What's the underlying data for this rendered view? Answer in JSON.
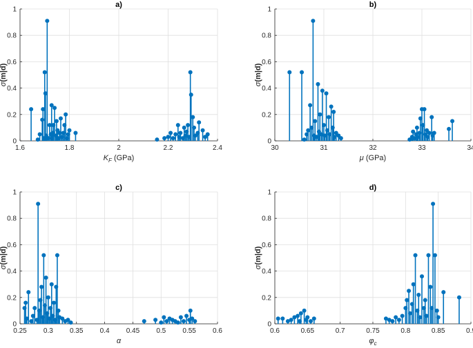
{
  "chart_data": [
    {
      "type": "stem",
      "title": "a)",
      "xlabel": "K_F (GPa)",
      "ylabel": "σ(m|d)",
      "xlim": [
        1.6,
        2.4
      ],
      "ylim": [
        0,
        1
      ],
      "xticks": [
        "1.6",
        "1.8",
        "2",
        "2.2",
        "2.4"
      ],
      "yticks": [
        "0",
        "0.2",
        "0.4",
        "0.6",
        "0.8",
        "1"
      ],
      "grid": true,
      "points": [
        [
          1.645,
          0.24
        ],
        [
          1.672,
          0.01
        ],
        [
          1.68,
          0.05
        ],
        [
          1.69,
          0.16
        ],
        [
          1.693,
          0.24
        ],
        [
          1.697,
          0.02
        ],
        [
          1.7,
          0.52
        ],
        [
          1.703,
          0.36
        ],
        [
          1.706,
          0.04
        ],
        [
          1.71,
          0.91
        ],
        [
          1.715,
          0.02
        ],
        [
          1.72,
          0.12
        ],
        [
          1.725,
          0.05
        ],
        [
          1.728,
          0.27
        ],
        [
          1.732,
          0.06
        ],
        [
          1.735,
          0.12
        ],
        [
          1.74,
          0.25
        ],
        [
          1.745,
          0.04
        ],
        [
          1.748,
          0.15
        ],
        [
          1.752,
          0.08
        ],
        [
          1.755,
          0.02
        ],
        [
          1.76,
          0.06
        ],
        [
          1.765,
          0.17
        ],
        [
          1.77,
          0.03
        ],
        [
          1.775,
          0.06
        ],
        [
          1.78,
          0.12
        ],
        [
          1.785,
          0.2
        ],
        [
          1.79,
          0.02
        ],
        [
          1.795,
          0.05
        ],
        [
          1.8,
          0.08
        ],
        [
          1.825,
          0.06
        ],
        [
          2.155,
          0.01
        ],
        [
          2.185,
          0.02
        ],
        [
          2.2,
          0.03
        ],
        [
          2.21,
          0.06
        ],
        [
          2.22,
          0.02
        ],
        [
          2.23,
          0.05
        ],
        [
          2.24,
          0.12
        ],
        [
          2.245,
          0.03
        ],
        [
          2.25,
          0.06
        ],
        [
          2.26,
          0.02
        ],
        [
          2.265,
          0.1
        ],
        [
          2.27,
          0.04
        ],
        [
          2.275,
          0.07
        ],
        [
          2.28,
          0.12
        ],
        [
          2.285,
          0.03
        ],
        [
          2.29,
          0.52
        ],
        [
          2.293,
          0.35
        ],
        [
          2.3,
          0.18
        ],
        [
          2.305,
          0.1
        ],
        [
          2.31,
          0.04
        ],
        [
          2.32,
          0.06
        ],
        [
          2.325,
          0.14
        ],
        [
          2.34,
          0.08
        ],
        [
          2.35,
          0.03
        ],
        [
          2.36,
          0.05
        ]
      ]
    },
    {
      "type": "stem",
      "title": "b)",
      "xlabel": "μ (GPa)",
      "ylabel": "σ(m|d)",
      "xlim": [
        30,
        34
      ],
      "ylim": [
        0,
        1
      ],
      "xticks": [
        "30",
        "31",
        "32",
        "33",
        "34"
      ],
      "yticks": [
        "0",
        "0.2",
        "0.4",
        "0.6",
        "0.8",
        "1"
      ],
      "grid": true,
      "points": [
        [
          30.3,
          0.52
        ],
        [
          30.55,
          0.52
        ],
        [
          30.6,
          0.01
        ],
        [
          30.65,
          0.05
        ],
        [
          30.68,
          0.08
        ],
        [
          30.72,
          0.27
        ],
        [
          30.75,
          0.1
        ],
        [
          30.78,
          0.91
        ],
        [
          30.8,
          0.04
        ],
        [
          30.82,
          0.15
        ],
        [
          30.85,
          0.03
        ],
        [
          30.88,
          0.43
        ],
        [
          30.9,
          0.07
        ],
        [
          30.92,
          0.2
        ],
        [
          30.95,
          0.05
        ],
        [
          30.97,
          0.38
        ],
        [
          31.0,
          0.12
        ],
        [
          31.02,
          0.04
        ],
        [
          31.05,
          0.36
        ],
        [
          31.07,
          0.08
        ],
        [
          31.1,
          0.18
        ],
        [
          31.12,
          0.05
        ],
        [
          31.15,
          0.26
        ],
        [
          31.18,
          0.1
        ],
        [
          31.2,
          0.22
        ],
        [
          31.22,
          0.03
        ],
        [
          31.25,
          0.06
        ],
        [
          31.3,
          0.04
        ],
        [
          31.35,
          0.02
        ],
        [
          32.75,
          0.01
        ],
        [
          32.8,
          0.03
        ],
        [
          32.82,
          0.07
        ],
        [
          32.85,
          0.02
        ],
        [
          32.88,
          0.05
        ],
        [
          32.9,
          0.1
        ],
        [
          32.92,
          0.03
        ],
        [
          32.95,
          0.06
        ],
        [
          32.97,
          0.17
        ],
        [
          33.0,
          0.24
        ],
        [
          33.02,
          0.12
        ],
        [
          33.05,
          0.24
        ],
        [
          33.07,
          0.05
        ],
        [
          33.1,
          0.08
        ],
        [
          33.12,
          0.03
        ],
        [
          33.15,
          0.06
        ],
        [
          33.2,
          0.18
        ],
        [
          33.22,
          0.04
        ],
        [
          33.25,
          0.06
        ],
        [
          33.55,
          0.09
        ],
        [
          33.62,
          0.15
        ]
      ]
    },
    {
      "type": "stem",
      "title": "c)",
      "xlabel": "α",
      "ylabel": "σ(m|d)",
      "xlim": [
        0.25,
        0.6
      ],
      "ylim": [
        0,
        1
      ],
      "xticks": [
        "0.25",
        "0.3",
        "0.35",
        "0.4",
        "0.45",
        "0.5",
        "0.55",
        "0.6"
      ],
      "yticks": [
        "0",
        "0.2",
        "0.4",
        "0.6",
        "0.8",
        "1"
      ],
      "grid": true,
      "points": [
        [
          0.258,
          0.12
        ],
        [
          0.26,
          0.16
        ],
        [
          0.262,
          0.04
        ],
        [
          0.265,
          0.24
        ],
        [
          0.27,
          0.02
        ],
        [
          0.273,
          0.06
        ],
        [
          0.276,
          0.12
        ],
        [
          0.28,
          0.03
        ],
        [
          0.282,
          0.91
        ],
        [
          0.284,
          0.1
        ],
        [
          0.286,
          0.18
        ],
        [
          0.288,
          0.28
        ],
        [
          0.29,
          0.05
        ],
        [
          0.292,
          0.52
        ],
        [
          0.294,
          0.14
        ],
        [
          0.296,
          0.35
        ],
        [
          0.298,
          0.08
        ],
        [
          0.3,
          0.2
        ],
        [
          0.302,
          0.04
        ],
        [
          0.304,
          0.12
        ],
        [
          0.306,
          0.3
        ],
        [
          0.308,
          0.06
        ],
        [
          0.31,
          0.16
        ],
        [
          0.312,
          0.03
        ],
        [
          0.314,
          0.28
        ],
        [
          0.316,
          0.52
        ],
        [
          0.318,
          0.1
        ],
        [
          0.32,
          0.05
        ],
        [
          0.325,
          0.04
        ],
        [
          0.33,
          0.02
        ],
        [
          0.335,
          0.03
        ],
        [
          0.34,
          0.01
        ],
        [
          0.47,
          0.02
        ],
        [
          0.49,
          0.03
        ],
        [
          0.5,
          0.01
        ],
        [
          0.505,
          0.05
        ],
        [
          0.51,
          0.02
        ],
        [
          0.515,
          0.04
        ],
        [
          0.52,
          0.03
        ],
        [
          0.525,
          0.02
        ],
        [
          0.53,
          0.01
        ],
        [
          0.535,
          0.05
        ],
        [
          0.54,
          0.02
        ],
        [
          0.545,
          0.06
        ],
        [
          0.55,
          0.03
        ],
        [
          0.552,
          0.1
        ],
        [
          0.555,
          0.04
        ],
        [
          0.56,
          0.02
        ]
      ]
    },
    {
      "type": "stem",
      "title": "d)",
      "xlabel": "φ_c",
      "ylabel": "σ(m|d)",
      "xlim": [
        0.6,
        0.9
      ],
      "ylim": [
        0,
        1
      ],
      "xticks": [
        "0.6",
        "0.65",
        "0.7",
        "0.75",
        "0.8",
        "0.85",
        "0.9"
      ],
      "yticks": [
        "0",
        "0.2",
        "0.4",
        "0.6",
        "0.8",
        "1"
      ],
      "grid": true,
      "points": [
        [
          0.605,
          0.04
        ],
        [
          0.612,
          0.04
        ],
        [
          0.62,
          0.02
        ],
        [
          0.625,
          0.03
        ],
        [
          0.63,
          0.05
        ],
        [
          0.635,
          0.06
        ],
        [
          0.638,
          0.02
        ],
        [
          0.64,
          0.08
        ],
        [
          0.645,
          0.1
        ],
        [
          0.648,
          0.03
        ],
        [
          0.65,
          0.05
        ],
        [
          0.655,
          0.02
        ],
        [
          0.66,
          0.04
        ],
        [
          0.77,
          0.04
        ],
        [
          0.775,
          0.03
        ],
        [
          0.78,
          0.02
        ],
        [
          0.785,
          0.05
        ],
        [
          0.79,
          0.03
        ],
        [
          0.795,
          0.06
        ],
        [
          0.8,
          0.12
        ],
        [
          0.802,
          0.18
        ],
        [
          0.805,
          0.25
        ],
        [
          0.807,
          0.08
        ],
        [
          0.81,
          0.15
        ],
        [
          0.812,
          0.3
        ],
        [
          0.815,
          0.52
        ],
        [
          0.818,
          0.1
        ],
        [
          0.82,
          0.22
        ],
        [
          0.822,
          0.05
        ],
        [
          0.825,
          0.36
        ],
        [
          0.828,
          0.12
        ],
        [
          0.83,
          0.18
        ],
        [
          0.832,
          0.06
        ],
        [
          0.835,
          0.52
        ],
        [
          0.838,
          0.28
        ],
        [
          0.84,
          0.12
        ],
        [
          0.842,
          0.91
        ],
        [
          0.845,
          0.52
        ],
        [
          0.848,
          0.1
        ],
        [
          0.85,
          0.05
        ],
        [
          0.858,
          0.24
        ],
        [
          0.882,
          0.2
        ]
      ]
    }
  ]
}
